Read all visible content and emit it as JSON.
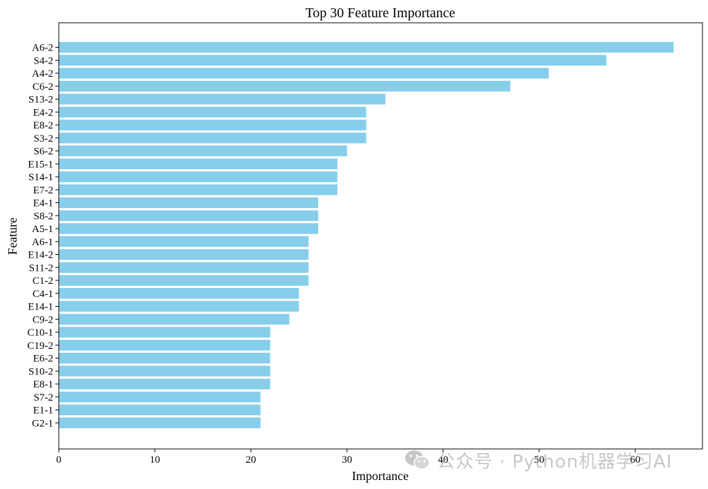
{
  "chart_data": {
    "type": "bar",
    "orientation": "horizontal",
    "title": "Top 30 Feature Importance",
    "xlabel": "Importance",
    "ylabel": "Feature",
    "xlim": [
      0,
      67
    ],
    "xticks": [
      0,
      10,
      20,
      30,
      40,
      50,
      60
    ],
    "grid": false,
    "bar_color": "#87CEEB",
    "categories": [
      "A6-2",
      "S4-2",
      "A4-2",
      "C6-2",
      "S13-2",
      "E4-2",
      "E8-2",
      "S3-2",
      "S6-2",
      "E15-1",
      "S14-1",
      "E7-2",
      "E4-1",
      "S8-2",
      "A5-1",
      "A6-1",
      "E14-2",
      "S11-2",
      "C1-2",
      "C4-1",
      "E14-1",
      "C9-2",
      "C10-1",
      "C19-2",
      "E6-2",
      "S10-2",
      "E8-1",
      "S7-2",
      "E1-1",
      "G2-1"
    ],
    "values": [
      64,
      57,
      51,
      47,
      34,
      32,
      32,
      32,
      30,
      29,
      29,
      29,
      27,
      27,
      27,
      26,
      26,
      26,
      26,
      25,
      25,
      24,
      22,
      22,
      22,
      22,
      22,
      21,
      21,
      21
    ]
  },
  "watermark": {
    "text": "公众号 · Python机器学习AI",
    "icon": "wechat-icon"
  }
}
